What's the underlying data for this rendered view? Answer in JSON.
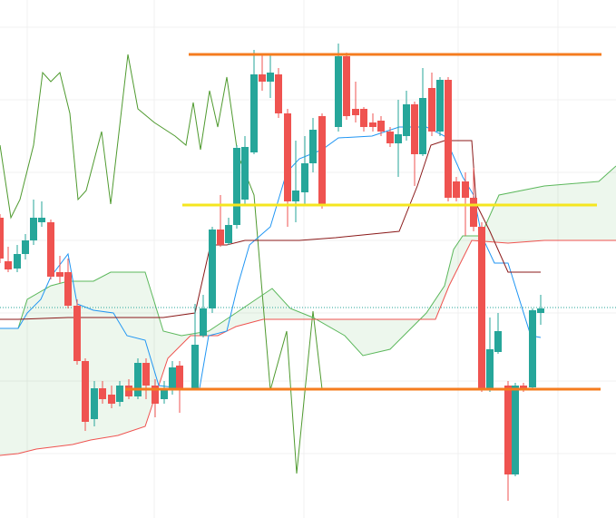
{
  "chart_data": {
    "type": "candlestick",
    "xlim": [
      0,
      679
    ],
    "ylim": [
      0,
      571
    ],
    "xticks": [
      30,
      170,
      335,
      505,
      615
    ],
    "yticks": [
      71,
      151,
      226,
      306,
      381,
      461,
      541
    ],
    "grid": true,
    "up_color": "#26a69a",
    "down_color": "#ef5350",
    "candles": {
      "x": [
        0,
        9,
        19,
        28,
        37,
        46,
        56,
        66,
        75,
        85,
        94,
        104,
        113,
        123,
        132,
        142,
        152,
        161,
        171,
        181,
        190,
        198,
        215,
        224,
        234,
        243,
        252,
        261,
        270,
        280,
        289,
        298,
        307,
        317,
        326,
        336,
        345,
        355,
        373,
        382,
        392,
        401,
        411,
        420,
        430,
        439,
        448,
        457,
        466,
        476,
        485,
        494,
        503,
        513,
        522,
        531,
        540,
        549,
        560,
        568,
        577,
        587,
        596
      ],
      "open": [
        331,
        283,
        275,
        291,
        306,
        326,
        326,
        271,
        271,
        234,
        173,
        109,
        143,
        136,
        128,
        146,
        134,
        171,
        146,
        131,
        141,
        168,
        143,
        201,
        231,
        318,
        303,
        323,
        351,
        403,
        489,
        481,
        489,
        446,
        349,
        359,
        391,
        443,
        431,
        509,
        451,
        451,
        436,
        438,
        426,
        413,
        421,
        456,
        401,
        474,
        426,
        483,
        371,
        371,
        353,
        321,
        141,
        183,
        146,
        48,
        146,
        144,
        226
      ],
      "high": [
        335,
        299,
        301,
        313,
        351,
        349,
        329,
        289,
        286,
        241,
        176,
        151,
        151,
        146,
        151,
        153,
        176,
        176,
        153,
        151,
        173,
        173,
        236,
        246,
        321,
        356,
        331,
        411,
        421,
        516,
        511,
        511,
        496,
        451,
        416,
        421,
        441,
        446,
        523,
        513,
        481,
        453,
        446,
        443,
        431,
        461,
        471,
        459,
        496,
        491,
        486,
        486,
        376,
        381,
        386,
        326,
        221,
        226,
        151,
        149,
        149,
        231,
        246
      ],
      "low": [
        281,
        271,
        271,
        285,
        301,
        321,
        263,
        259,
        231,
        169,
        96,
        101,
        126,
        121,
        123,
        131,
        131,
        131,
        111,
        126,
        136,
        116,
        141,
        199,
        226,
        299,
        301,
        319,
        346,
        401,
        471,
        463,
        441,
        321,
        326,
        346,
        381,
        341,
        426,
        439,
        436,
        426,
        426,
        421,
        409,
        376,
        416,
        366,
        399,
        421,
        421,
        349,
        349,
        311,
        316,
        139,
        139,
        181,
        19,
        46,
        139,
        141,
        213
      ],
      "close": [
        286,
        274,
        291,
        306,
        331,
        331,
        266,
        266,
        234,
        173,
        106,
        143,
        131,
        126,
        146,
        134,
        171,
        146,
        126,
        143,
        166,
        141,
        191,
        231,
        318,
        301,
        323,
        408,
        409,
        489,
        481,
        491,
        446,
        349,
        361,
        391,
        428,
        346,
        509,
        443,
        444,
        431,
        431,
        426,
        413,
        423,
        456,
        401,
        463,
        426,
        483,
        353,
        353,
        353,
        321,
        141,
        186,
        206,
        48,
        146,
        141,
        229,
        231
      ]
    },
    "lines": [
      {
        "color": "#4f9a2f",
        "x": [
          0,
          12,
          22,
          37,
          47,
          56,
          66,
          77,
          86,
          95,
          112,
          122,
          141,
          152,
          170,
          193,
          205,
          213,
          221,
          231,
          240,
          250,
          262,
          280,
          298,
          316,
          327,
          345,
          355
        ],
        "values": [
          411,
          331,
          351,
          411,
          491,
          481,
          491,
          446,
          351,
          361,
          426,
          346,
          511,
          451,
          436,
          421,
          411,
          458,
          406,
          471,
          431,
          486,
          401,
          356,
          141,
          206,
          49,
          228,
          142
        ]
      },
      {
        "color": "#5cb85c",
        "x": [
          0,
          20,
          30,
          56,
          75,
          103,
          122,
          160,
          180,
          200,
          230,
          260,
          300,
          320,
          345,
          380,
          400,
          430,
          470,
          490,
          500,
          510,
          530,
          550,
          600,
          660,
          679
        ],
        "values": [
          209,
          209,
          241,
          256,
          261,
          261,
          271,
          271,
          206,
          201,
          206,
          226,
          253,
          231,
          221,
          201,
          179,
          186,
          226,
          256,
          296,
          311,
          311,
          356,
          366,
          371,
          388
        ]
      },
      {
        "color": "#ef5350",
        "x": [
          0,
          20,
          40,
          80,
          100,
          130,
          160,
          185,
          210,
          240,
          260,
          290,
          340,
          380,
          480,
          495,
          520,
          560,
          600,
          679
        ],
        "values": [
          69,
          71,
          76,
          81,
          86,
          91,
          101,
          176,
          201,
          201,
          211,
          219,
          219,
          219,
          219,
          256,
          306,
          303,
          306,
          306
        ]
      },
      {
        "color": "#2196f3",
        "x": [
          0,
          20,
          30,
          45,
          56,
          75,
          85,
          103,
          125,
          140,
          160,
          175,
          200,
          220,
          230,
          250,
          262,
          275,
          298,
          316,
          330,
          355,
          373,
          410,
          440,
          470,
          490,
          510,
          522,
          531,
          545,
          560,
          585,
          596
        ],
        "values": [
          209,
          209,
          226,
          241,
          266,
          291,
          236,
          229,
          226,
          201,
          196,
          146,
          143,
          143,
          201,
          206,
          256,
          301,
          321,
          381,
          396,
          406,
          419,
          421,
          431,
          431,
          421,
          376,
          356,
          311,
          281,
          281,
          201,
          199
        ]
      },
      {
        "color": "#8b1a1a",
        "x": [
          0,
          20,
          75,
          180,
          215,
          232,
          250,
          270,
          330,
          370,
          440,
          460,
          475,
          490,
          520,
          525,
          540,
          560,
          596
        ],
        "values": [
          219,
          219,
          221,
          221,
          226,
          301,
          301,
          306,
          306,
          309,
          316,
          366,
          411,
          416,
          416,
          346,
          316,
          271,
          271
        ]
      }
    ],
    "cloud": {
      "lines": [
        1,
        2
      ],
      "color": "rgba(76,175,80,0.1)"
    },
    "levels": [
      {
        "value": 511,
        "x": [
          208,
          663
        ],
        "color": "#f57c1f"
      },
      {
        "value": 345,
        "x": [
          201,
          658
        ],
        "color": "#f5e61f"
      },
      {
        "value": 142,
        "x": [
          138,
          662
        ],
        "color": "#f57c1f"
      }
    ],
    "price_line": {
      "value": 232,
      "color": "#26a69a"
    }
  }
}
